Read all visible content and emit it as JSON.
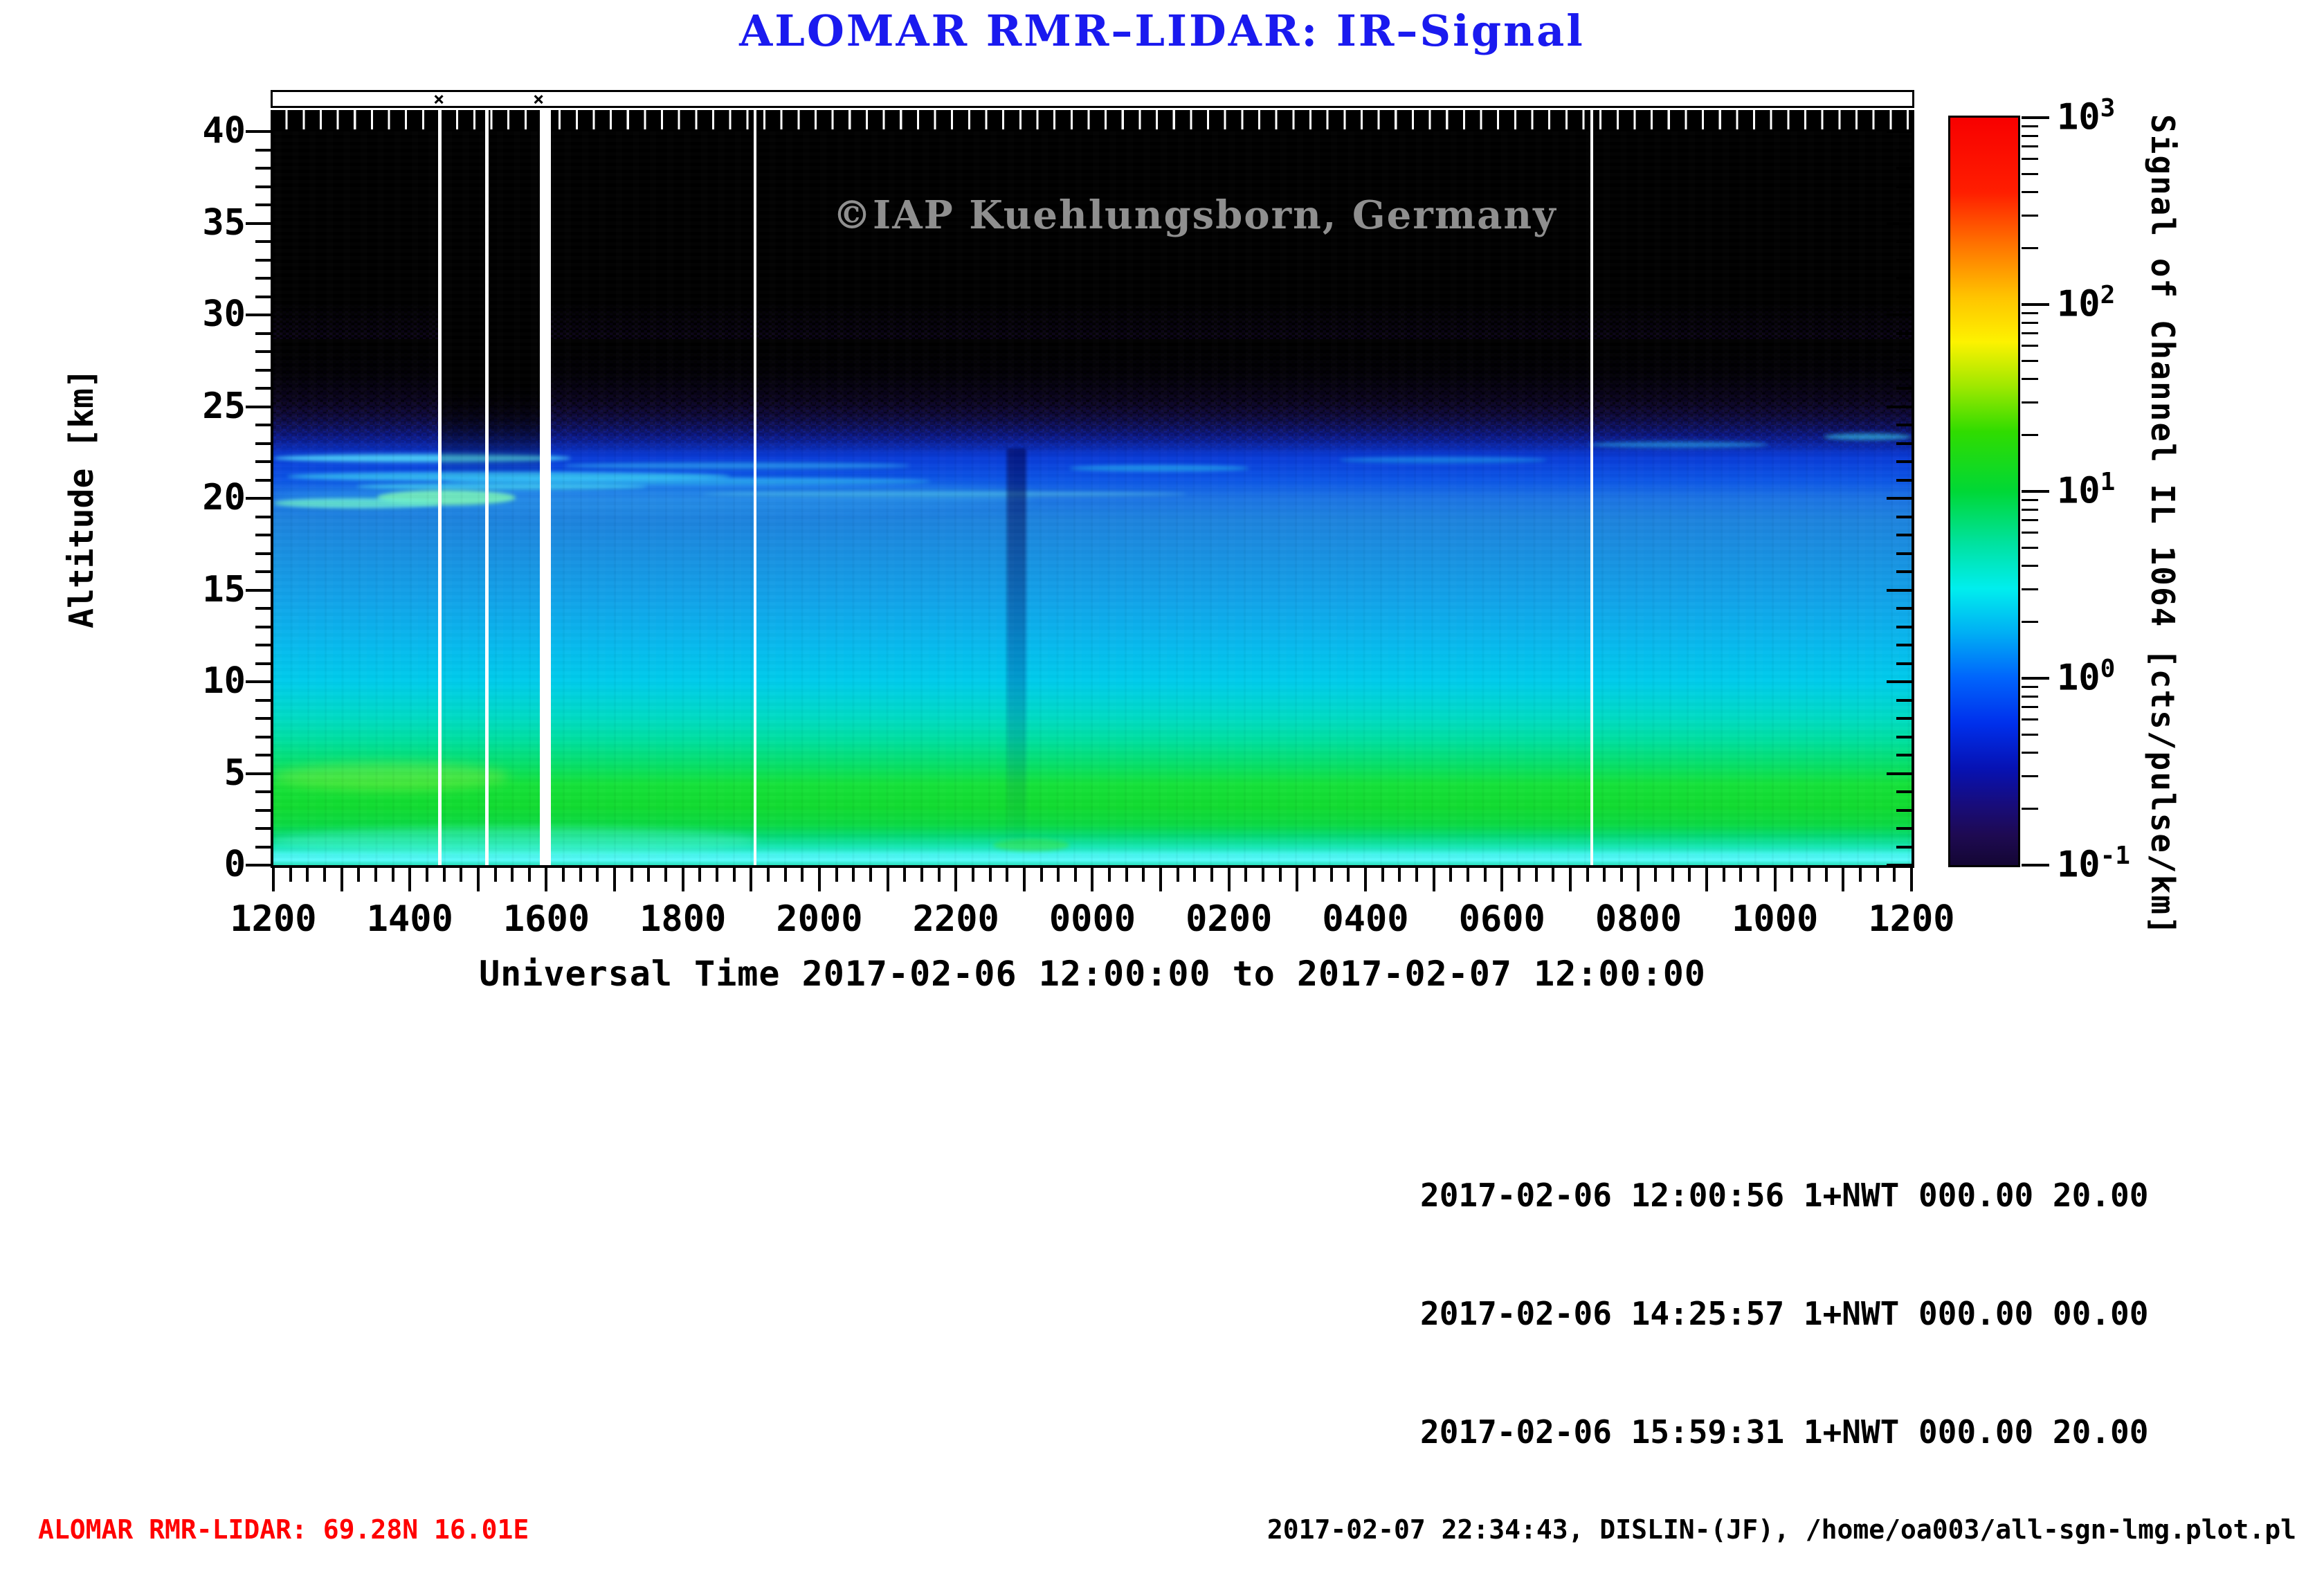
{
  "title": "ALOMAR RMR–LIDAR: IR–Signal",
  "watermark": "©IAP Kuehlungsborn, Germany",
  "chart_data": {
    "type": "heatmap",
    "title": "ALOMAR RMR–LIDAR: IR–Signal",
    "xlabel": "Universal Time 2017-02-06 12:00:00 to 2017-02-07 12:00:00",
    "ylabel": "Altitude [km]",
    "colorbar_label": "Signal of Channel IL 1064 [cts/pulse/km]",
    "x_tick_labels": [
      "1200",
      "1400",
      "1600",
      "1800",
      "2000",
      "2200",
      "0000",
      "0200",
      "0400",
      "0600",
      "0800",
      "1000",
      "1200"
    ],
    "y_tick_labels": [
      "0",
      "5",
      "10",
      "15",
      "20",
      "25",
      "30",
      "35",
      "40"
    ],
    "ylim": [
      0,
      40
    ],
    "x_range_ut": [
      "2017-02-06 12:00:00",
      "2017-02-07 12:00:00"
    ],
    "z_scale": "log10",
    "z_range": [
      0.1,
      1000
    ],
    "z_unit": "cts/pulse/km",
    "colormap": "rainbow (red = 10^3 high ... dark violet/black = 10^-1 low)",
    "colorbar_tick_labels": [
      {
        "base": "10",
        "exp": "3"
      },
      {
        "base": "10",
        "exp": "2"
      },
      {
        "base": "10",
        "exp": "1"
      },
      {
        "base": "10",
        "exp": "0"
      },
      {
        "base": "10",
        "exp": "-1"
      }
    ],
    "altitude_profile_approx": [
      {
        "alt_km": 0.5,
        "signal": 4
      },
      {
        "alt_km": 2,
        "signal": 8
      },
      {
        "alt_km": 5,
        "signal": 10
      },
      {
        "alt_km": 8,
        "signal": 5
      },
      {
        "alt_km": 11,
        "signal": 3
      },
      {
        "alt_km": 14,
        "signal": 1.5
      },
      {
        "alt_km": 17,
        "signal": 1.0
      },
      {
        "alt_km": 19.5,
        "signal": 0.8
      },
      {
        "alt_km": 20.5,
        "signal": 2.0,
        "note": "bright cirrus/aerosol streaks mainly 12:00-19:00 UT"
      },
      {
        "alt_km": 23,
        "signal": 0.4
      },
      {
        "alt_km": 25,
        "signal": 0.2
      },
      {
        "alt_km": 27,
        "signal": 0.12
      },
      {
        "alt_km": 30,
        "signal": 0.1
      },
      {
        "alt_km": 40,
        "signal": 0.1
      }
    ],
    "data_gaps_ut": [
      "14:26",
      "15:06",
      "15:54-16:04",
      "23:02",
      "07:18"
    ],
    "file_start_markers_ut": [
      "14:26",
      "15:59"
    ]
  },
  "info": {
    "lines": [
      "2017-02-06 12:00:56 1+NWT 000.00 20.00",
      "2017-02-06 14:25:57 1+NWT 000.00 00.00",
      "2017-02-06 15:59:31 1+NWT 000.00 20.00"
    ]
  },
  "footer": {
    "left": "ALOMAR RMR-LIDAR: 69.28N 16.01E",
    "right": "2017-02-07 22:34:43, DISLIN-(JF), /home/oa003/all-sgn-lmg.plot.pl"
  },
  "marker_glyph": "×",
  "colors": {
    "title_blue": "#1a1aef",
    "footer_red": "#ff0000",
    "watermark_gray": "#8f8f8f",
    "axis_black": "#000000"
  }
}
